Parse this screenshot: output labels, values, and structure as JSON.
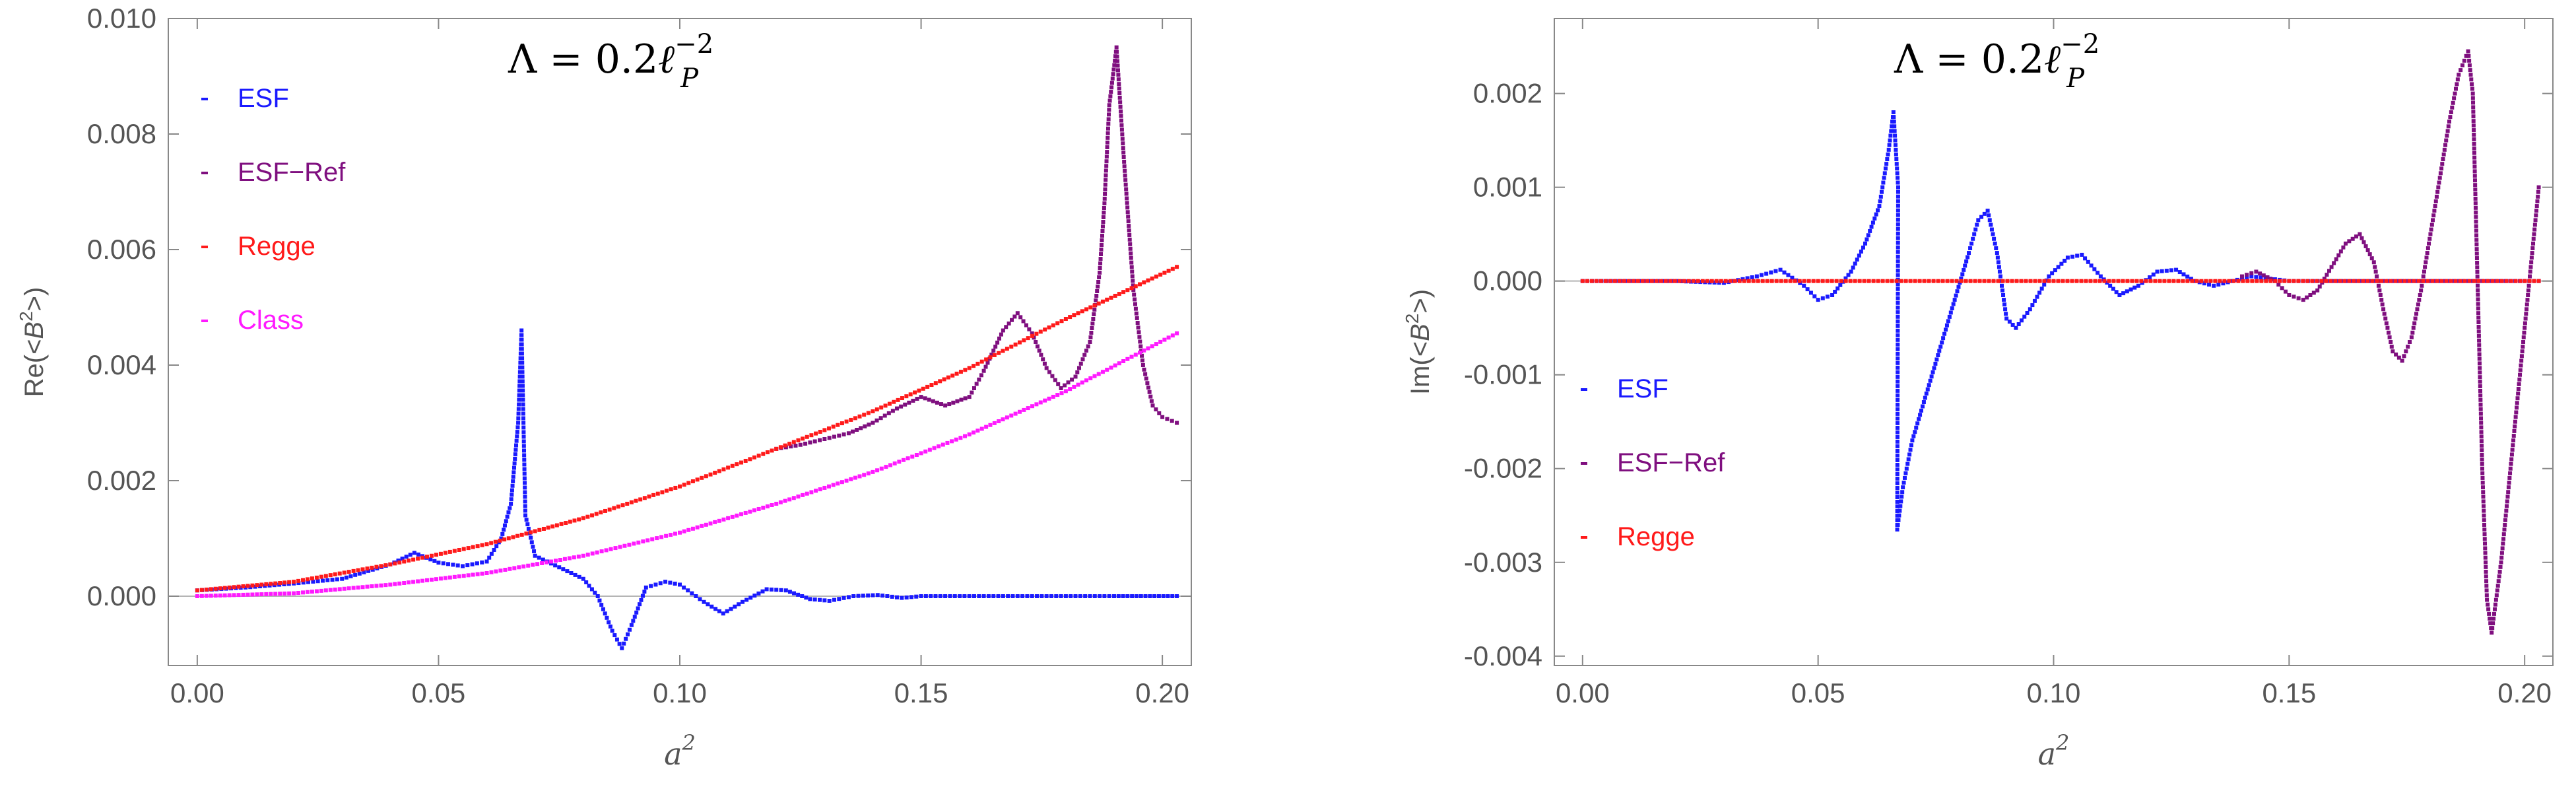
{
  "chart_data": [
    {
      "type": "scatter",
      "panel": "left",
      "annotation": {
        "lambda": "Λ = 0.2",
        "ell": "ℓ",
        "sup": "−2",
        "sub": "P"
      },
      "xlabel": {
        "base": "a",
        "sup": "2"
      },
      "ylabel": {
        "pre": "Re(<",
        "base": "B",
        "sup": "2",
        "post": ">)"
      },
      "xlim": [
        -0.006,
        0.206
      ],
      "ylim": [
        -0.0012,
        0.01
      ],
      "xticks": [
        0.0,
        0.05,
        0.1,
        0.15,
        0.2
      ],
      "xtick_labels": [
        "0.00",
        "0.05",
        "0.10",
        "0.15",
        "0.20"
      ],
      "yticks": [
        0.0,
        0.002,
        0.004,
        0.006,
        0.008,
        0.01
      ],
      "ytick_labels": [
        "0.000",
        "0.002",
        "0.004",
        "0.006",
        "0.008",
        "0.010"
      ],
      "legend_position": "top-left",
      "legend": [
        {
          "label": "ESF",
          "color": "#1a1aff"
        },
        {
          "label": "ESF−Ref",
          "color": "#7f0f7f"
        },
        {
          "label": "Regge",
          "color": "#ff1a1a"
        },
        {
          "label": "Class",
          "color": "#ff1aff"
        }
      ],
      "series": [
        {
          "name": "ESF",
          "color": "#1a1aff",
          "points": [
            [
              0.0,
              0.0001
            ],
            [
              0.01,
              0.00015
            ],
            [
              0.02,
              0.00022
            ],
            [
              0.03,
              0.0003
            ],
            [
              0.04,
              0.00055
            ],
            [
              0.045,
              0.00075
            ],
            [
              0.05,
              0.00058
            ],
            [
              0.055,
              0.00052
            ],
            [
              0.06,
              0.0006
            ],
            [
              0.063,
              0.001
            ],
            [
              0.065,
              0.0016
            ],
            [
              0.0665,
              0.003
            ],
            [
              0.0672,
              0.0046
            ],
            [
              0.068,
              0.0014
            ],
            [
              0.07,
              0.0007
            ],
            [
              0.075,
              0.0005
            ],
            [
              0.08,
              0.0003
            ],
            [
              0.083,
              0.0
            ],
            [
              0.086,
              -0.0006
            ],
            [
              0.088,
              -0.0009
            ],
            [
              0.09,
              -0.0005
            ],
            [
              0.093,
              0.00015
            ],
            [
              0.097,
              0.00025
            ],
            [
              0.1,
              0.0002
            ],
            [
              0.105,
              -0.0001
            ],
            [
              0.109,
              -0.0003
            ],
            [
              0.113,
              -0.0001
            ],
            [
              0.118,
              0.00012
            ],
            [
              0.122,
              0.0001
            ],
            [
              0.127,
              -5e-05
            ],
            [
              0.131,
              -8e-05
            ],
            [
              0.136,
              0.0
            ],
            [
              0.141,
              2e-05
            ],
            [
              0.146,
              -3e-05
            ],
            [
              0.15,
              0.0
            ],
            [
              0.16,
              0.0
            ],
            [
              0.17,
              0.0
            ],
            [
              0.18,
              0.0
            ],
            [
              0.19,
              0.0
            ],
            [
              0.203,
              0.0
            ]
          ]
        },
        {
          "name": "ESF−Ref",
          "color": "#7f0f7f",
          "points": [
            [
              0.12,
              0.00255
            ],
            [
              0.125,
              0.00262
            ],
            [
              0.13,
              0.00272
            ],
            [
              0.135,
              0.00282
            ],
            [
              0.14,
              0.003
            ],
            [
              0.145,
              0.00325
            ],
            [
              0.15,
              0.00345
            ],
            [
              0.155,
              0.0033
            ],
            [
              0.16,
              0.00345
            ],
            [
              0.163,
              0.0039
            ],
            [
              0.167,
              0.0046
            ],
            [
              0.17,
              0.0049
            ],
            [
              0.173,
              0.00455
            ],
            [
              0.176,
              0.00395
            ],
            [
              0.179,
              0.0036
            ],
            [
              0.182,
              0.0038
            ],
            [
              0.185,
              0.0044
            ],
            [
              0.187,
              0.0056
            ],
            [
              0.188,
              0.0068
            ],
            [
              0.189,
              0.0085
            ],
            [
              0.1905,
              0.0095
            ],
            [
              0.192,
              0.0076
            ],
            [
              0.194,
              0.0053
            ],
            [
              0.196,
              0.004
            ],
            [
              0.198,
              0.0033
            ],
            [
              0.2,
              0.0031
            ],
            [
              0.203,
              0.003
            ]
          ]
        },
        {
          "name": "Regge",
          "color": "#ff1a1a",
          "points": [
            [
              0.0,
              0.0001
            ],
            [
              0.02,
              0.00025
            ],
            [
              0.04,
              0.00055
            ],
            [
              0.06,
              0.0009
            ],
            [
              0.08,
              0.00135
            ],
            [
              0.1,
              0.0019
            ],
            [
              0.12,
              0.00255
            ],
            [
              0.14,
              0.0032
            ],
            [
              0.16,
              0.00395
            ],
            [
              0.18,
              0.0048
            ],
            [
              0.203,
              0.0057
            ]
          ]
        },
        {
          "name": "Class",
          "color": "#ff1aff",
          "points": [
            [
              0.0,
              0.0
            ],
            [
              0.02,
              5e-05
            ],
            [
              0.04,
              0.0002
            ],
            [
              0.06,
              0.0004
            ],
            [
              0.08,
              0.0007
            ],
            [
              0.1,
              0.0011
            ],
            [
              0.12,
              0.0016
            ],
            [
              0.14,
              0.00215
            ],
            [
              0.16,
              0.0028
            ],
            [
              0.18,
              0.00355
            ],
            [
              0.203,
              0.00455
            ]
          ]
        }
      ]
    },
    {
      "type": "scatter",
      "panel": "right",
      "annotation": {
        "lambda": "Λ = 0.2",
        "ell": "ℓ",
        "sup": "−2",
        "sub": "P"
      },
      "xlabel": {
        "base": "a",
        "sup": "2"
      },
      "ylabel": {
        "pre": "Im(<",
        "base": "B",
        "sup": "2",
        "post": ">)"
      },
      "xlim": [
        -0.006,
        0.206
      ],
      "ylim": [
        -0.0041,
        0.0028
      ],
      "xticks": [
        0.0,
        0.05,
        0.1,
        0.15,
        0.2
      ],
      "xtick_labels": [
        "0.00",
        "0.05",
        "0.10",
        "0.15",
        "0.20"
      ],
      "yticks": [
        -0.004,
        -0.003,
        -0.002,
        -0.001,
        0.0,
        0.001,
        0.002
      ],
      "ytick_labels": [
        "-0.004",
        "-0.003",
        "-0.002",
        "-0.001",
        "0.000",
        "0.001",
        "0.002"
      ],
      "legend_position": "center-left",
      "legend": [
        {
          "label": "ESF",
          "color": "#1a1aff"
        },
        {
          "label": "ESF−Ref",
          "color": "#7f0f7f"
        },
        {
          "label": "Regge",
          "color": "#ff1a1a"
        }
      ],
      "series": [
        {
          "name": "ESF",
          "color": "#1a1aff",
          "points": [
            [
              0.0,
              0.0
            ],
            [
              0.02,
              0.0
            ],
            [
              0.03,
              -2e-05
            ],
            [
              0.037,
              5e-05
            ],
            [
              0.042,
              0.00012
            ],
            [
              0.047,
              -5e-05
            ],
            [
              0.05,
              -0.0002
            ],
            [
              0.053,
              -0.00015
            ],
            [
              0.057,
              0.0001
            ],
            [
              0.06,
              0.0004
            ],
            [
              0.063,
              0.0008
            ],
            [
              0.065,
              0.0014
            ],
            [
              0.066,
              0.0018
            ],
            [
              0.067,
              0.001
            ],
            [
              0.0668,
              -0.00265
            ],
            [
              0.068,
              -0.0022
            ],
            [
              0.07,
              -0.0017
            ],
            [
              0.073,
              -0.0012
            ],
            [
              0.076,
              -0.0007
            ],
            [
              0.079,
              -0.0002
            ],
            [
              0.082,
              0.0003
            ],
            [
              0.084,
              0.00065
            ],
            [
              0.086,
              0.00075
            ],
            [
              0.088,
              0.0003
            ],
            [
              0.09,
              -0.0004
            ],
            [
              0.092,
              -0.0005
            ],
            [
              0.095,
              -0.0003
            ],
            [
              0.099,
              5e-05
            ],
            [
              0.103,
              0.00025
            ],
            [
              0.106,
              0.00028
            ],
            [
              0.11,
              5e-05
            ],
            [
              0.114,
              -0.00015
            ],
            [
              0.118,
              -5e-05
            ],
            [
              0.122,
              0.0001
            ],
            [
              0.126,
              0.00012
            ],
            [
              0.13,
              0.0
            ],
            [
              0.134,
              -5e-05
            ],
            [
              0.138,
              0.0
            ],
            [
              0.142,
              5e-05
            ],
            [
              0.15,
              0.0
            ],
            [
              0.16,
              0.0
            ],
            [
              0.17,
              0.0
            ],
            [
              0.18,
              0.0
            ],
            [
              0.19,
              0.0
            ],
            [
              0.203,
              0.0
            ]
          ]
        },
        {
          "name": "ESF−Ref",
          "color": "#7f0f7f",
          "points": [
            [
              0.14,
              5e-05
            ],
            [
              0.143,
              0.0001
            ],
            [
              0.147,
              0.0
            ],
            [
              0.15,
              -0.00015
            ],
            [
              0.153,
              -0.0002
            ],
            [
              0.156,
              -0.0001
            ],
            [
              0.159,
              0.00015
            ],
            [
              0.162,
              0.0004
            ],
            [
              0.165,
              0.0005
            ],
            [
              0.168,
              0.0002
            ],
            [
              0.17,
              -0.0003
            ],
            [
              0.172,
              -0.00075
            ],
            [
              0.174,
              -0.00085
            ],
            [
              0.176,
              -0.0006
            ],
            [
              0.178,
              -0.0001
            ],
            [
              0.18,
              0.0005
            ],
            [
              0.182,
              0.0011
            ],
            [
              0.184,
              0.0017
            ],
            [
              0.186,
              0.0022
            ],
            [
              0.188,
              0.00245
            ],
            [
              0.189,
              0.002
            ],
            [
              0.19,
              0.0
            ],
            [
              0.191,
              -0.002
            ],
            [
              0.192,
              -0.0034
            ],
            [
              0.193,
              -0.00375
            ],
            [
              0.195,
              -0.003
            ],
            [
              0.197,
              -0.002
            ],
            [
              0.199,
              -0.001
            ],
            [
              0.201,
              0.0
            ],
            [
              0.203,
              0.001
            ]
          ]
        },
        {
          "name": "Regge",
          "color": "#ff1a1a",
          "points": [
            [
              0.0,
              0.0
            ],
            [
              0.05,
              0.0
            ],
            [
              0.1,
              0.0
            ],
            [
              0.15,
              0.0
            ],
            [
              0.203,
              0.0
            ]
          ]
        }
      ]
    }
  ]
}
